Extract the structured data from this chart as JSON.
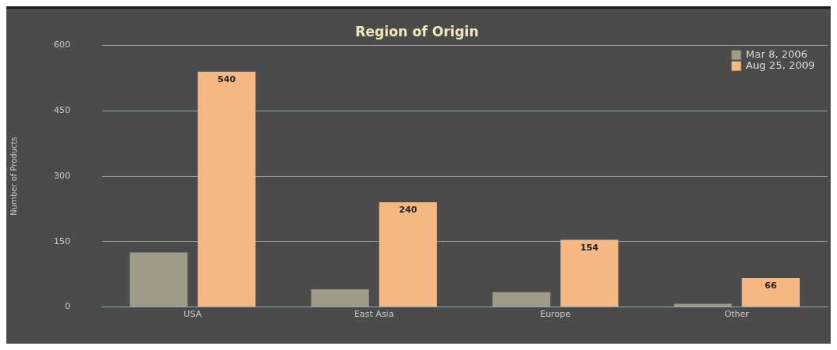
{
  "chart_data": {
    "type": "bar",
    "title": "Region of Origin",
    "ylabel": "Number of Products",
    "categories": [
      "USA",
      "East Asia",
      "Europe",
      "Other"
    ],
    "series": [
      {
        "name": "Mar 8, 2006",
        "color": "#9e9c88",
        "values": [
          125,
          40,
          34,
          7
        ]
      },
      {
        "name": "Aug 25, 2009",
        "color": "#f5b882",
        "values": [
          540,
          240,
          154,
          66
        ],
        "value_labels": [
          "540",
          "240",
          "154",
          "66"
        ]
      }
    ],
    "ylim": [
      0,
      600
    ],
    "yticks": [
      0,
      150,
      300,
      450,
      600
    ],
    "grid": "y",
    "legend": "top right"
  }
}
